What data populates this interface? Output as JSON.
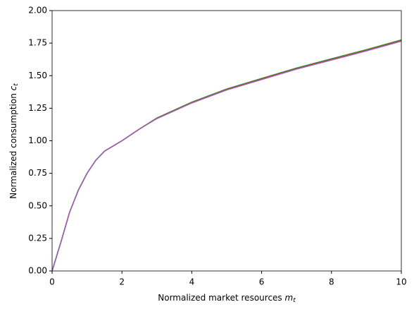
{
  "chart_data": {
    "type": "line",
    "xlabel": {
      "text": "Normalized market resources",
      "var": "m",
      "sub": "t"
    },
    "ylabel": {
      "text": "Normalized consumption",
      "var": "c",
      "sub": "t"
    },
    "x": [
      0,
      0.25,
      0.5,
      0.75,
      1,
      1.25,
      1.5,
      2,
      2.5,
      3,
      4,
      5,
      6,
      7,
      8,
      9,
      10
    ],
    "series": [
      {
        "color": "#1f77b4",
        "values": [
          0,
          0.22,
          0.45,
          0.62,
          0.75,
          0.85,
          0.92,
          1.0,
          1.09,
          1.174,
          1.296,
          1.397,
          1.478,
          1.558,
          1.628,
          1.698,
          1.773
        ]
      },
      {
        "color": "#ff7f0e",
        "values": [
          0,
          0.22,
          0.45,
          0.62,
          0.75,
          0.85,
          0.92,
          1.0,
          1.09,
          1.173,
          1.294,
          1.395,
          1.476,
          1.556,
          1.626,
          1.696,
          1.771
        ]
      },
      {
        "color": "#2ca02c",
        "values": [
          0,
          0.22,
          0.45,
          0.62,
          0.75,
          0.85,
          0.92,
          1.0,
          1.09,
          1.175,
          1.297,
          1.398,
          1.479,
          1.559,
          1.63,
          1.7,
          1.775
        ]
      },
      {
        "color": "#d62728",
        "values": [
          0,
          0.22,
          0.45,
          0.62,
          0.75,
          0.85,
          0.92,
          1.0,
          1.09,
          1.172,
          1.293,
          1.393,
          1.474,
          1.554,
          1.624,
          1.694,
          1.769
        ]
      },
      {
        "color": "#9467bd",
        "values": [
          0,
          0.22,
          0.45,
          0.62,
          0.75,
          0.85,
          0.92,
          1.0,
          1.09,
          1.17,
          1.29,
          1.39,
          1.47,
          1.55,
          1.62,
          1.69,
          1.765
        ]
      }
    ],
    "xlim": [
      0,
      10
    ],
    "xticks": [
      0,
      2,
      4,
      6,
      8,
      10
    ],
    "ylim": [
      0,
      2
    ],
    "yticks": [
      {
        "value": 0,
        "label": "0.00"
      },
      {
        "value": 0.25,
        "label": "0.25"
      },
      {
        "value": 0.5,
        "label": "0.50"
      },
      {
        "value": 0.75,
        "label": "0.75"
      },
      {
        "value": 1,
        "label": "1.00"
      },
      {
        "value": 1.25,
        "label": "1.25"
      },
      {
        "value": 1.5,
        "label": "1.50"
      },
      {
        "value": 1.75,
        "label": "1.75"
      },
      {
        "value": 2,
        "label": "2.00"
      }
    ]
  }
}
